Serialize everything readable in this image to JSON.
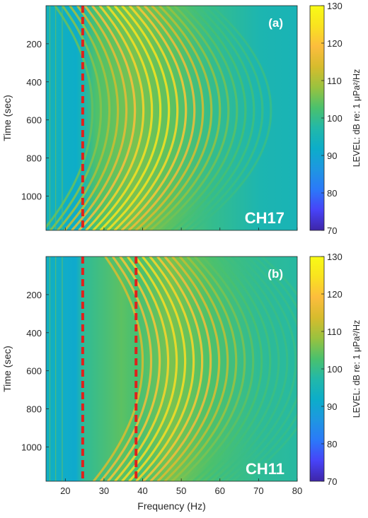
{
  "chart_data": [
    {
      "type": "heatmap",
      "panel_label": "(a)",
      "channel_label": "CH17",
      "xlim": [
        15,
        80
      ],
      "ylim": [
        0,
        1180
      ],
      "y_reversed": true,
      "xticks": [
        "20",
        "30",
        "40",
        "50",
        "60",
        "70",
        "80"
      ],
      "yticks": [
        "200",
        "400",
        "600",
        "800",
        "1000"
      ],
      "ylabel": "Time (sec)",
      "xlabel": "",
      "colorbar": {
        "label": "LEVEL: dB re: 1 μPa²/Hz",
        "range": [
          70,
          130
        ],
        "ticks": [
          "70",
          "80",
          "90",
          "100",
          "110",
          "120",
          "130"
        ]
      },
      "reference_lines": [
        {
          "frequency_hz": 24.5,
          "color": "#e0211c",
          "style": "dashed"
        }
      ],
      "striation_pattern": {
        "description_values": "parabolic interference striations, apex near 550 sec",
        "apex_time_sec": 550,
        "peak_level_db": 125,
        "background_level_db": 98
      }
    },
    {
      "type": "heatmap",
      "panel_label": "(b)",
      "channel_label": "CH11",
      "xlim": [
        15,
        80
      ],
      "ylim": [
        0,
        1180
      ],
      "y_reversed": true,
      "xticks": [
        "20",
        "30",
        "40",
        "50",
        "60",
        "70",
        "80"
      ],
      "yticks": [
        "200",
        "400",
        "600",
        "800",
        "1000"
      ],
      "ylabel": "Time (sec)",
      "xlabel": "Frequency (Hz)",
      "colorbar": {
        "label": "LEVEL: dB re: 1 μPa²/Hz",
        "range": [
          70,
          130
        ],
        "ticks": [
          "70",
          "80",
          "90",
          "100",
          "110",
          "120",
          "130"
        ]
      },
      "reference_lines": [
        {
          "frequency_hz": 24.5,
          "color": "#e0211c",
          "style": "dashed"
        },
        {
          "frequency_hz": 38.3,
          "color": "#e0211c",
          "style": "dashed"
        }
      ],
      "striation_pattern": {
        "description_values": "parabolic interference striations, apex near 550 sec",
        "apex_time_sec": 550,
        "peak_level_db": 124,
        "background_level_db": 98
      }
    }
  ],
  "colormap": "parula",
  "colormap_stops": [
    "#3e26a8",
    "#4743f8",
    "#2b79f9",
    "#1e97e1",
    "#0cadc9",
    "#22b8a9",
    "#4ac16d",
    "#99c23f",
    "#d6bc2d",
    "#fcbd3d",
    "#f9e220",
    "#f9fb15"
  ]
}
